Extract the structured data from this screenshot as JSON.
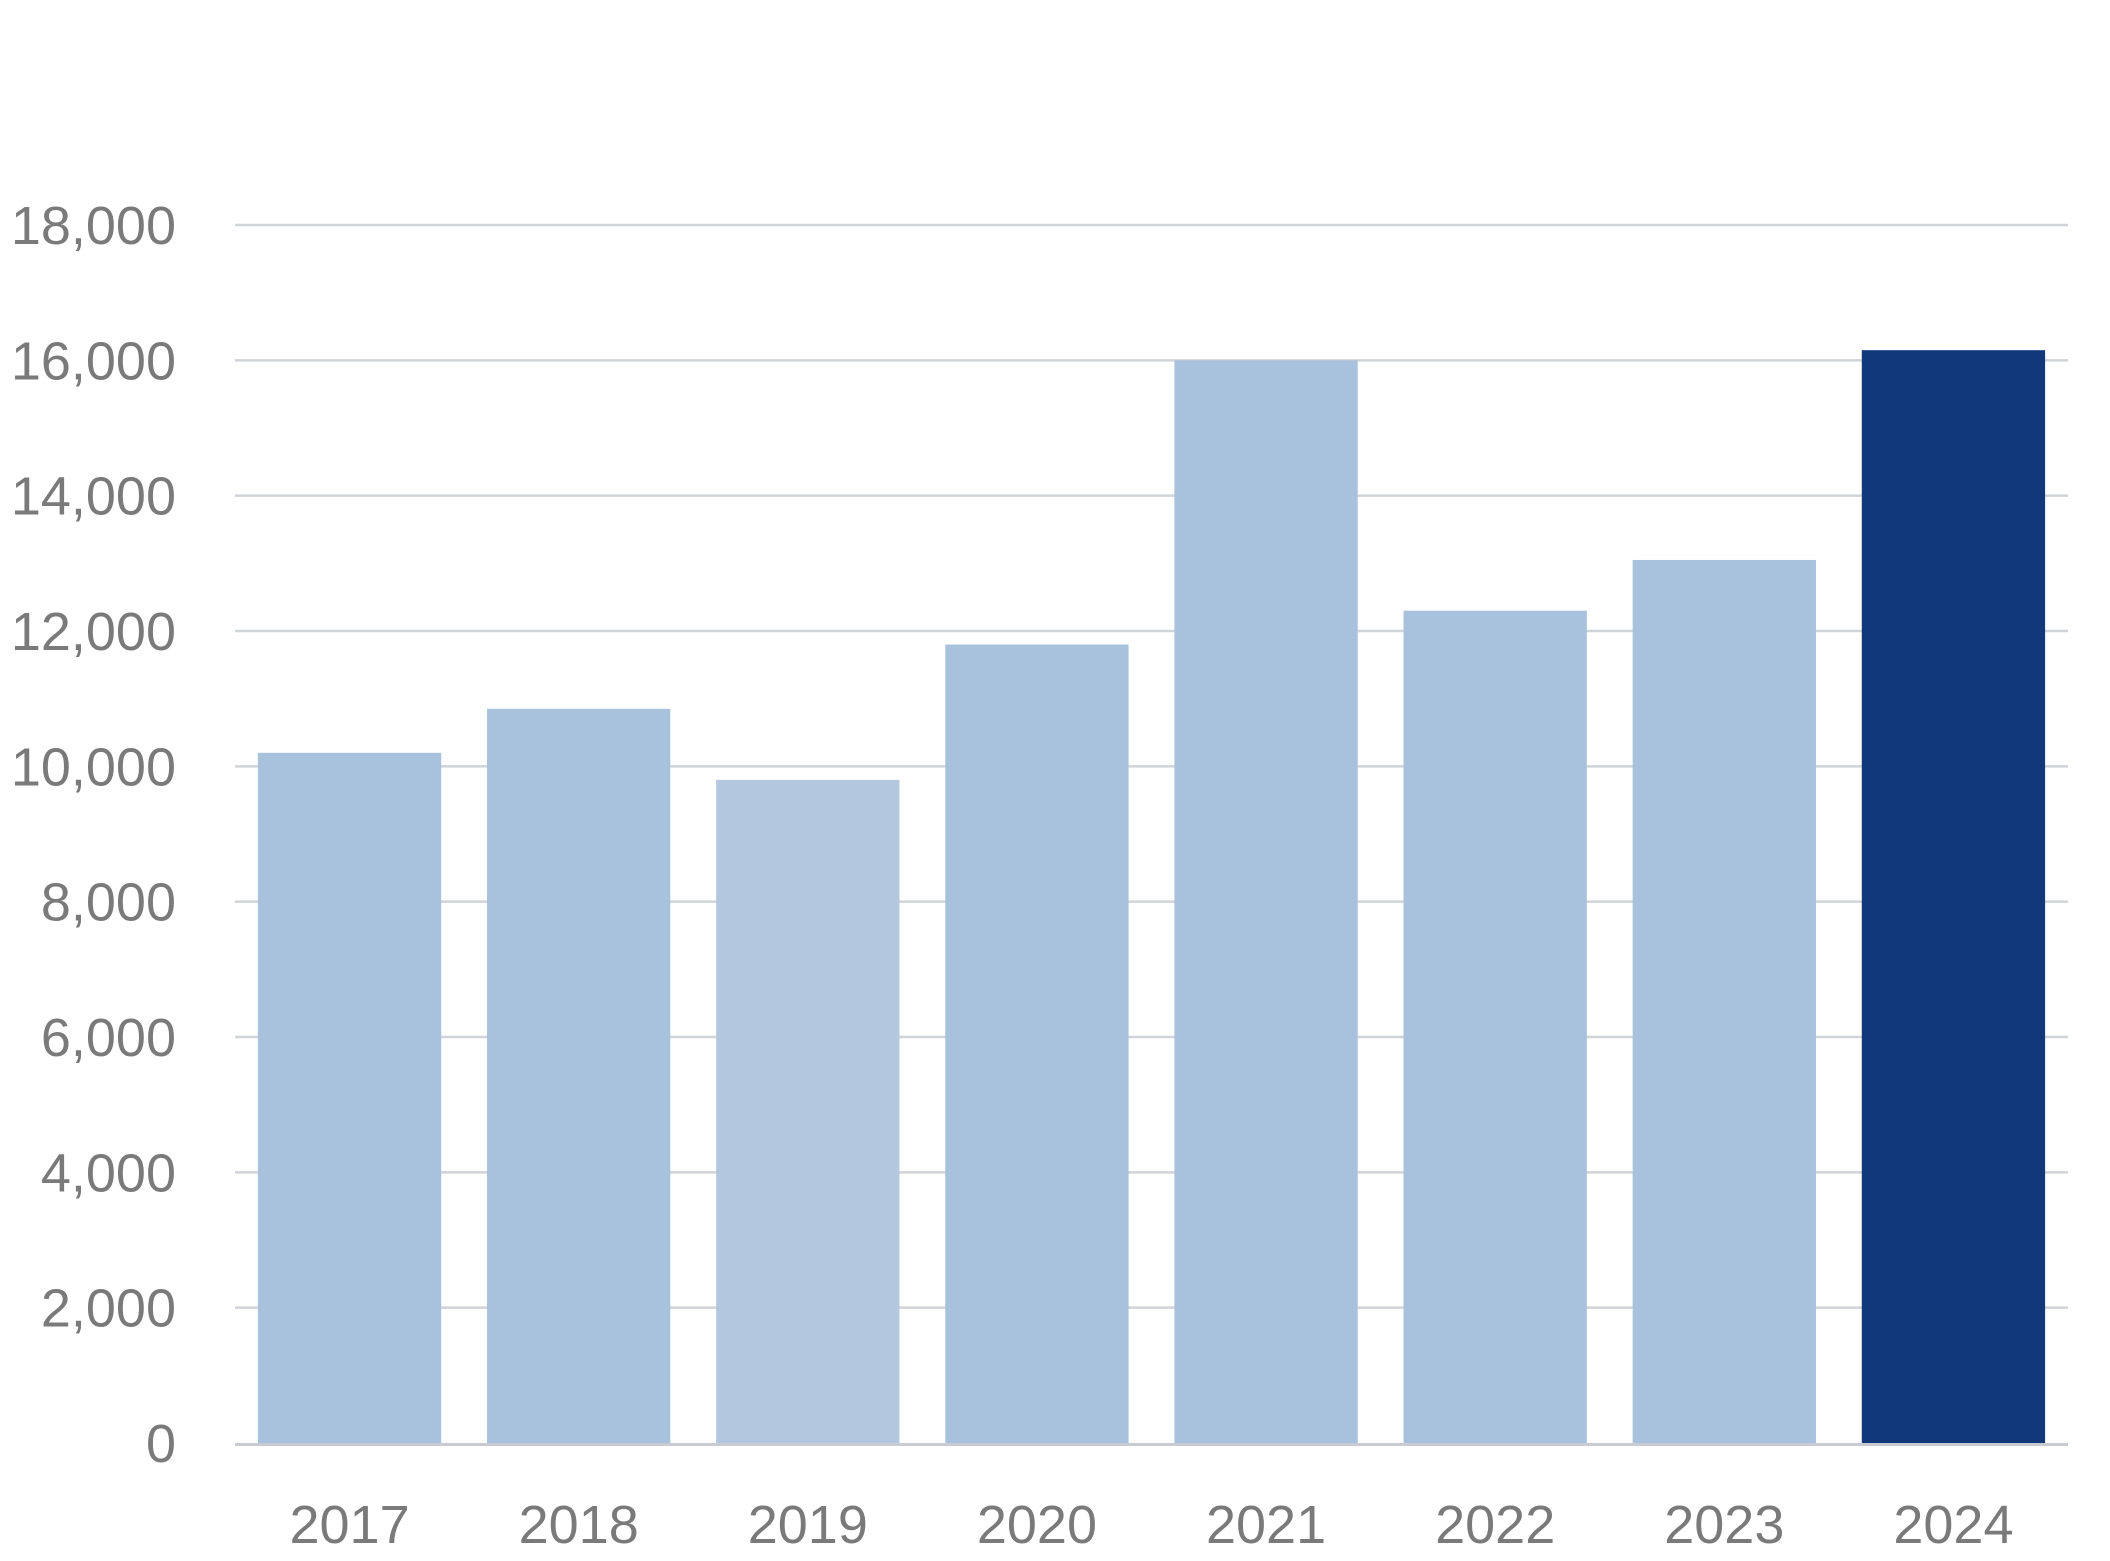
{
  "chart_data": {
    "type": "bar",
    "title": "",
    "xlabel": "",
    "ylabel": "",
    "categories": [
      "2017",
      "2018",
      "2019",
      "2020",
      "2021",
      "2022",
      "2023",
      "2024"
    ],
    "values": [
      10200,
      10850,
      9800,
      11800,
      16000,
      12300,
      13050,
      16150
    ],
    "ylim": [
      0,
      18000
    ],
    "yticks": [
      0,
      2000,
      4000,
      6000,
      8000,
      10000,
      12000,
      14000,
      16000,
      18000
    ],
    "ytick_labels": [
      "0",
      "2,000",
      "4,000",
      "6,000",
      "8,000",
      "10,000",
      "12,000",
      "14,000",
      "16,000",
      "18,000"
    ],
    "grid": true,
    "bar_colors": [
      "#a8c1dc",
      "#a8c1dc",
      "#b3c8df",
      "#a8c1dc",
      "#a8c1dc",
      "#a8c1dc",
      "#a8c1dc",
      "#10387b"
    ],
    "highlighted_category": "2024"
  }
}
